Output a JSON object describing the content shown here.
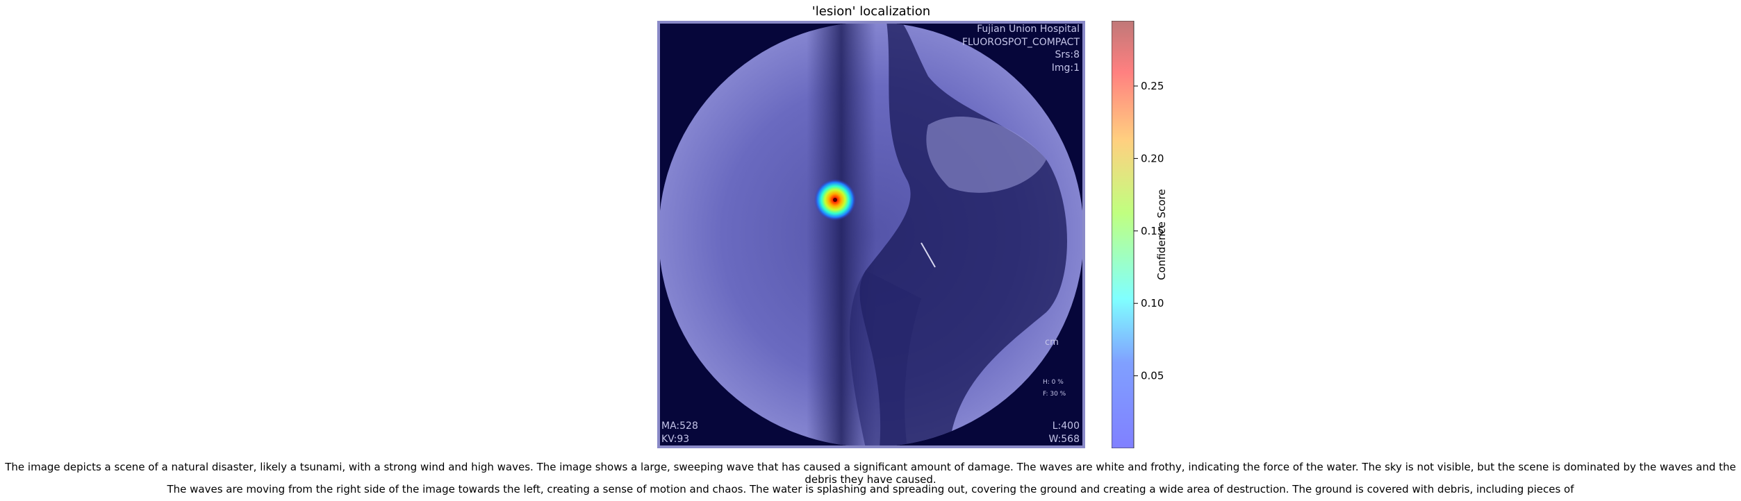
{
  "chart_data": {
    "type": "heatmap",
    "title": "'lesion' localization",
    "colorbar": {
      "label": "Confidence Score",
      "range": [
        0.0,
        0.295
      ],
      "ticks": [
        0.05,
        0.1,
        0.15,
        0.2,
        0.25
      ],
      "tick_labels": [
        "0.05",
        "0.10",
        "0.15",
        "0.20",
        "0.25"
      ],
      "colormap": "jet",
      "alpha": 0.5
    },
    "peak": {
      "label": "lesion",
      "score": 0.29
    },
    "image_overlay_text": {
      "top_right": [
        "Fujian Union Hospital",
        "FLUOROSPOT_COMPACT",
        "Srs:8",
        "Img:1"
      ],
      "bottom_left": [
        "MA:528",
        "KV:93"
      ],
      "bottom_right": [
        "L:400",
        "W:568"
      ],
      "right_side": [
        "cm",
        "H: 0 %",
        "F: 30 %"
      ]
    }
  },
  "caption": {
    "line1": "The image depicts a scene of a natural disaster, likely a tsunami, with a strong wind and high waves. The image shows a large, sweeping wave that has caused a significant amount of damage. The waves are white and frothy, indicating the force of the water. The sky is not visible, but the scene is dominated by the waves and the debris they have caused.",
    "line2": "The waves are moving from the right side of the image towards the left, creating a sense of motion and chaos. The water is splashing and spreading out, covering the ground and creating a wide area of destruction. The ground is covered with debris, including pieces of"
  },
  "colors": {
    "background_navy": "#06063a",
    "overlay_blue": "#7f7fd8",
    "frame": "#8a8ac8"
  }
}
